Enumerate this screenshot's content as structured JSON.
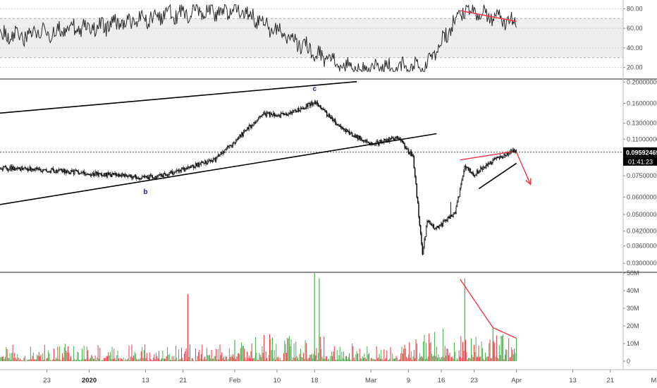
{
  "colors": {
    "up": "#26a69a",
    "down": "#ef5350",
    "vol_up": "#4caf50",
    "vol_down": "#f23645",
    "annot_red": "#f23645",
    "annot_black": "#000000",
    "rsi_line": "#2b2b2b",
    "rsi_band": "#eeeeee",
    "price_tag_bg": "#000000",
    "price_tag_fg": "#ffffff",
    "wave_label": "#1a237e"
  },
  "chart_data": [
    {
      "type": "line",
      "pane": "rsi",
      "ylim": [
        14,
        86
      ],
      "tick_labels": [
        "80.00",
        "60.00",
        "40.00",
        "20.00"
      ],
      "tick_values": [
        80,
        60,
        40,
        20
      ],
      "band": [
        30,
        70
      ],
      "notes": "oscillator pane; band drawn between 30 and 70",
      "key_points": [
        {
          "x": "2019-12-15",
          "y": 52
        },
        {
          "x": "2020-01-05",
          "y": 63
        },
        {
          "x": "2020-01-23",
          "y": 78
        },
        {
          "x": "2020-02-03",
          "y": 77
        },
        {
          "x": "2020-02-24",
          "y": 19
        },
        {
          "x": "2020-03-09",
          "y": 20
        },
        {
          "x": "2020-03-13",
          "y": 20
        },
        {
          "x": "2020-03-20",
          "y": 78
        },
        {
          "x": "2020-03-28",
          "y": 72
        },
        {
          "x": "2020-04-01",
          "y": 64
        }
      ],
      "divergence_line": {
        "from": {
          "x": "2020-03-20",
          "y": 78
        },
        "to": {
          "x": "2020-04-01",
          "y": 67
        }
      }
    },
    {
      "type": "candlestick",
      "pane": "price",
      "ylim": [
        0.0275,
        0.205
      ],
      "scale": "log",
      "tick_labels": [
        "0.20000000",
        "0.16000000",
        "0.13000000",
        "0.11000000",
        "0.09000000",
        "0.07500000",
        "0.06000000",
        "0.05000000",
        "0.04200000",
        "0.03600000",
        "0.03000000"
      ],
      "tick_values": [
        0.2,
        0.16,
        0.13,
        0.11,
        0.09,
        0.075,
        0.06,
        0.05,
        0.042,
        0.036,
        0.03
      ],
      "last_price": 0.09592469,
      "last_price_label": "0.09592469",
      "countdown_label": "01:41:23",
      "key_points": [
        {
          "x": "2019-12-15",
          "y": 0.081
        },
        {
          "x": "2019-12-26",
          "y": 0.079
        },
        {
          "x": "2020-01-13",
          "y": 0.0735
        },
        {
          "x": "2020-01-18",
          "y": 0.0765
        },
        {
          "x": "2020-01-28",
          "y": 0.089
        },
        {
          "x": "2020-02-07",
          "y": 0.143
        },
        {
          "x": "2020-02-12",
          "y": 0.141
        },
        {
          "x": "2020-02-18",
          "y": 0.162
        },
        {
          "x": "2020-02-24",
          "y": 0.122
        },
        {
          "x": "2020-03-01",
          "y": 0.104
        },
        {
          "x": "2020-03-07",
          "y": 0.112
        },
        {
          "x": "2020-03-10",
          "y": 0.091
        },
        {
          "x": "2020-03-12",
          "y": 0.033
        },
        {
          "x": "2020-03-13",
          "y": 0.047
        },
        {
          "x": "2020-03-15",
          "y": 0.043
        },
        {
          "x": "2020-03-19",
          "y": 0.051
        },
        {
          "x": "2020-03-21",
          "y": 0.083
        },
        {
          "x": "2020-03-23",
          "y": 0.076
        },
        {
          "x": "2020-03-27",
          "y": 0.088
        },
        {
          "x": "2020-03-31",
          "y": 0.0965
        },
        {
          "x": "2020-04-01",
          "y": 0.0959
        }
      ],
      "spikes": [
        {
          "x": "2020-03-12",
          "low": 0.033
        },
        {
          "x": "2020-03-18",
          "high": 0.057
        }
      ],
      "wave_labels": [
        {
          "text": "b",
          "x": "2020-01-13",
          "y": 0.062
        },
        {
          "text": "c",
          "x": "2020-02-18",
          "y": 0.182
        }
      ],
      "trendlines": [
        {
          "color": "black",
          "from": {
            "x": "2019-12-13",
            "y": 0.1445
          },
          "to": {
            "x": "2020-02-27",
            "y": 0.201
          }
        },
        {
          "color": "black",
          "from": {
            "x": "2019-12-13",
            "y": 0.0555
          },
          "to": {
            "x": "2020-03-15",
            "y": 0.1165
          }
        },
        {
          "color": "red",
          "from": {
            "x": "2020-03-20",
            "y": 0.0885
          },
          "to": {
            "x": "2020-03-31",
            "y": 0.0965
          }
        },
        {
          "color": "black",
          "from": {
            "x": "2020-03-24",
            "y": 0.0655
          },
          "to": {
            "x": "2020-04-01",
            "y": 0.0855
          }
        },
        {
          "color": "red",
          "arrow": true,
          "from": {
            "x": "2020-04-01",
            "y": 0.096
          },
          "to": {
            "x": "2020-04-04",
            "y": 0.0685
          }
        }
      ]
    },
    {
      "type": "bar",
      "pane": "volume",
      "ylim": [
        -4,
        50
      ],
      "tick_labels": [
        "50M",
        "40M",
        "30M",
        "20M",
        "10M",
        "0"
      ],
      "tick_values": [
        50,
        40,
        30,
        20,
        10,
        0
      ],
      "units": "M",
      "spikes": [
        {
          "x": "2020-01-22",
          "value": 38,
          "color": "red"
        },
        {
          "x": "2020-02-01",
          "value": 12,
          "color": "green"
        },
        {
          "x": "2020-02-18",
          "value": 50,
          "color": "green"
        },
        {
          "x": "2020-02-19",
          "value": 47,
          "color": "green"
        },
        {
          "x": "2020-03-21",
          "value": 47,
          "color": "green"
        },
        {
          "x": "2020-03-27",
          "value": 19,
          "color": "green"
        },
        {
          "x": "2020-04-01",
          "value": 13,
          "color": "green"
        }
      ],
      "trendline": {
        "from": {
          "x": "2020-03-20",
          "value": 46.5
        },
        "to": {
          "x": "2020-03-27",
          "value": 19
        }
      },
      "trendline_2": {
        "from": {
          "x": "2020-03-27",
          "value": 19
        },
        "to": {
          "x": "2020-04-01",
          "value": 13
        }
      }
    }
  ],
  "x_axis": {
    "ticks": [
      {
        "label": "23",
        "date": "2019-12-23",
        "bold": false
      },
      {
        "label": "2020",
        "date": "2020-01-01",
        "bold": true
      },
      {
        "label": "13",
        "date": "2020-01-13",
        "bold": false
      },
      {
        "label": "21",
        "date": "2020-01-21",
        "bold": false
      },
      {
        "label": "Feb",
        "date": "2020-02-01",
        "bold": false
      },
      {
        "label": "10",
        "date": "2020-02-10",
        "bold": false
      },
      {
        "label": "18",
        "date": "2020-02-18",
        "bold": false
      },
      {
        "label": "Mar",
        "date": "2020-03-01",
        "bold": false
      },
      {
        "label": "9",
        "date": "2020-03-09",
        "bold": false
      },
      {
        "label": "16",
        "date": "2020-03-16",
        "bold": false
      },
      {
        "label": "23",
        "date": "2020-03-23",
        "bold": false
      },
      {
        "label": "Apr",
        "date": "2020-04-01",
        "bold": false
      },
      {
        "label": "13",
        "date": "2020-04-13",
        "bold": false
      },
      {
        "label": "21",
        "date": "2020-04-21",
        "bold": false
      },
      {
        "label": "May",
        "date": "2020-05-01",
        "bold": false
      }
    ]
  }
}
